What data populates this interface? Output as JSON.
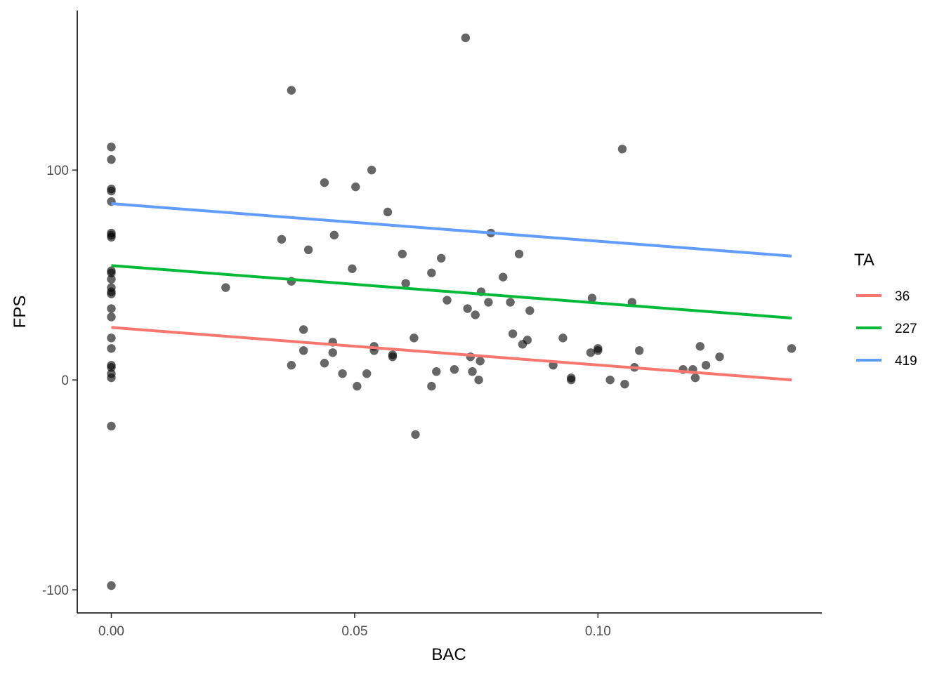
{
  "chart_data": {
    "type": "scatter",
    "xlabel": "BAC",
    "ylabel": "FPS",
    "xlim": [
      -0.007,
      0.146
    ],
    "ylim": [
      -111,
      176
    ],
    "x_ticks": [
      0.0,
      0.05,
      0.1
    ],
    "x_tick_labels": [
      "0.00",
      "0.05",
      "0.10"
    ],
    "y_ticks": [
      -100,
      0,
      100
    ],
    "y_tick_labels": [
      "-100",
      "0",
      "100"
    ],
    "grid": false,
    "points": [
      [
        0.0,
        111
      ],
      [
        0.0,
        105
      ],
      [
        0.0,
        91
      ],
      [
        0.0,
        90
      ],
      [
        0.0,
        85
      ],
      [
        0.0,
        70
      ],
      [
        0.0,
        69
      ],
      [
        0.0,
        68
      ],
      [
        0.0,
        52
      ],
      [
        0.0,
        51
      ],
      [
        0.0,
        48
      ],
      [
        0.0,
        44
      ],
      [
        0.0,
        42
      ],
      [
        0.0,
        41
      ],
      [
        0.0,
        34
      ],
      [
        0.0,
        30
      ],
      [
        0.0,
        20
      ],
      [
        0.0,
        15
      ],
      [
        0.0,
        7
      ],
      [
        0.0,
        6
      ],
      [
        0.0,
        3
      ],
      [
        0.0,
        1
      ],
      [
        0.0,
        -22
      ],
      [
        0.0,
        -98
      ],
      [
        0.0235,
        44
      ],
      [
        0.035,
        67
      ],
      [
        0.037,
        138
      ],
      [
        0.037,
        47
      ],
      [
        0.037,
        7
      ],
      [
        0.0395,
        24
      ],
      [
        0.0395,
        14
      ],
      [
        0.0405,
        62
      ],
      [
        0.0438,
        94
      ],
      [
        0.0438,
        8
      ],
      [
        0.0455,
        18
      ],
      [
        0.0455,
        13
      ],
      [
        0.0458,
        69
      ],
      [
        0.0475,
        3
      ],
      [
        0.0495,
        53
      ],
      [
        0.0502,
        92
      ],
      [
        0.0505,
        -3
      ],
      [
        0.0525,
        3
      ],
      [
        0.0535,
        100
      ],
      [
        0.054,
        14
      ],
      [
        0.054,
        16
      ],
      [
        0.0568,
        80
      ],
      [
        0.0578,
        11
      ],
      [
        0.0578,
        12
      ],
      [
        0.0598,
        60
      ],
      [
        0.0605,
        46
      ],
      [
        0.0622,
        20
      ],
      [
        0.0625,
        -26
      ],
      [
        0.0658,
        51
      ],
      [
        0.0658,
        -3
      ],
      [
        0.0668,
        4
      ],
      [
        0.0678,
        58
      ],
      [
        0.069,
        38
      ],
      [
        0.0705,
        5
      ],
      [
        0.0728,
        163
      ],
      [
        0.0732,
        34
      ],
      [
        0.0738,
        11
      ],
      [
        0.0742,
        4
      ],
      [
        0.0748,
        31
      ],
      [
        0.0755,
        0
      ],
      [
        0.0758,
        9
      ],
      [
        0.076,
        42
      ],
      [
        0.0775,
        37
      ],
      [
        0.078,
        70
      ],
      [
        0.0805,
        49
      ],
      [
        0.082,
        37
      ],
      [
        0.0825,
        22
      ],
      [
        0.0838,
        60
      ],
      [
        0.0845,
        17
      ],
      [
        0.0855,
        19
      ],
      [
        0.086,
        33
      ],
      [
        0.0908,
        7
      ],
      [
        0.0928,
        20
      ],
      [
        0.0945,
        1
      ],
      [
        0.0945,
        0
      ],
      [
        0.0985,
        13
      ],
      [
        0.0988,
        39
      ],
      [
        0.1,
        15
      ],
      [
        0.1,
        14
      ],
      [
        0.1025,
        0
      ],
      [
        0.105,
        110
      ],
      [
        0.1055,
        -2
      ],
      [
        0.107,
        37
      ],
      [
        0.1075,
        6
      ],
      [
        0.1085,
        14
      ],
      [
        0.1175,
        5
      ],
      [
        0.1195,
        5
      ],
      [
        0.12,
        1
      ],
      [
        0.121,
        16
      ],
      [
        0.1222,
        7
      ],
      [
        0.125,
        11
      ],
      [
        0.1398,
        15
      ]
    ],
    "series": [
      {
        "name": "36",
        "color": "#F8766D",
        "x": [
          0.0,
          0.1398
        ],
        "y": [
          25,
          0
        ]
      },
      {
        "name": "227",
        "color": "#00BA38",
        "x": [
          0.0,
          0.1398
        ],
        "y": [
          54.5,
          29.5
        ]
      },
      {
        "name": "419",
        "color": "#619CFF",
        "x": [
          0.0,
          0.1398
        ],
        "y": [
          84,
          59
        ]
      }
    ],
    "legend_title": "TA",
    "legend_position": "right",
    "point_color": "#000000",
    "point_opacity": 0.6
  }
}
